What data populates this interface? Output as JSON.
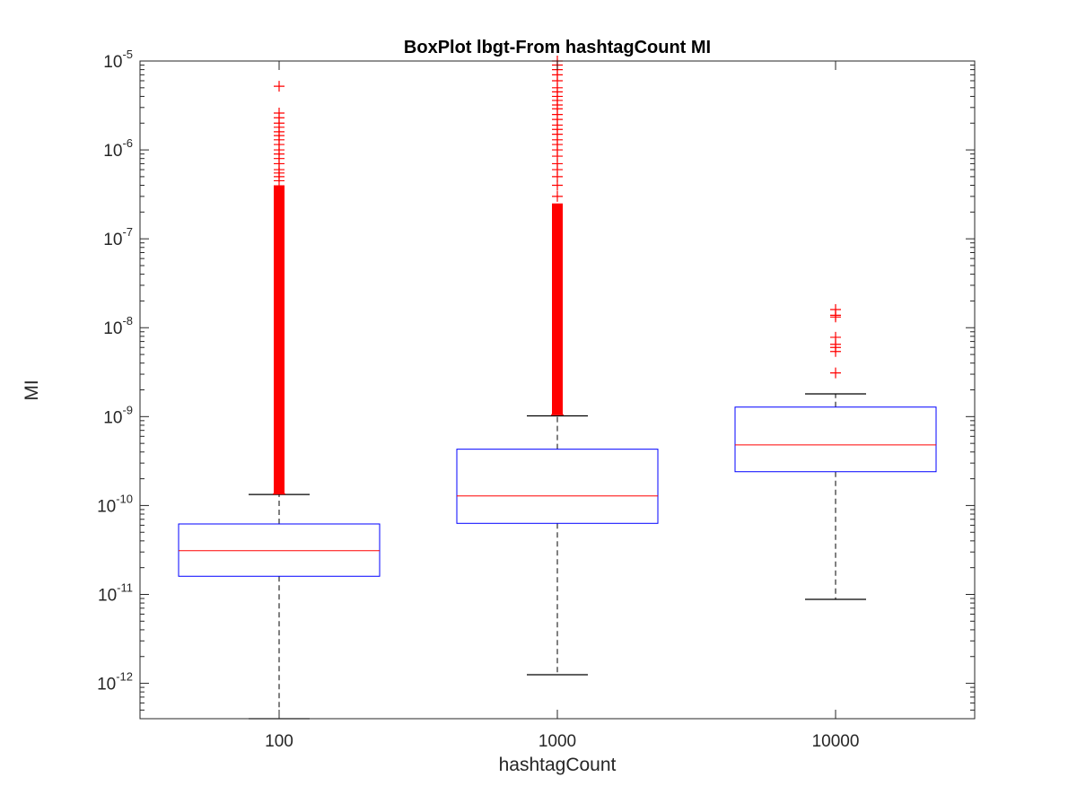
{
  "chart_data": {
    "type": "box",
    "title": "BoxPlot lbgt-From hashtagCount MI",
    "xlabel": "hashtagCount",
    "ylabel": "MI",
    "yscale": "log",
    "ylim": [
      4e-13,
      1e-05
    ],
    "categories": [
      "100",
      "1000",
      "10000"
    ],
    "y_ticks": [
      {
        "value": 1e-12,
        "base": "10",
        "exp": "-12"
      },
      {
        "value": 1e-11,
        "base": "10",
        "exp": "-11"
      },
      {
        "value": 1e-10,
        "base": "10",
        "exp": "-10"
      },
      {
        "value": 1e-09,
        "base": "10",
        "exp": "-9"
      },
      {
        "value": 1e-08,
        "base": "10",
        "exp": "-8"
      },
      {
        "value": 1e-07,
        "base": "10",
        "exp": "-7"
      },
      {
        "value": 1e-06,
        "base": "10",
        "exp": "-6"
      },
      {
        "value": 1e-05,
        "base": "10",
        "exp": "-5"
      }
    ],
    "boxes": [
      {
        "category": "100",
        "whisker_low": 4e-13,
        "q1": 1.6e-11,
        "median": 3.1e-11,
        "q3": 6.2e-11,
        "whisker_high": 1.33e-10,
        "outliers_dense_range": [
          1.35e-10,
          4e-07
        ],
        "outliers": [
          5.2e-06,
          2.6e-06,
          2.3e-06,
          2e-06,
          1.8e-06,
          1.6e-06,
          1.45e-06,
          1.3e-06,
          1.15e-06,
          1e-06,
          9e-07,
          8e-07,
          7e-07,
          6e-07,
          5.5e-07,
          5e-07,
          4.5e-07
        ]
      },
      {
        "category": "1000",
        "whisker_low": 1.25e-12,
        "q1": 6.3e-11,
        "median": 1.28e-10,
        "q3": 4.3e-10,
        "whisker_high": 1.02e-09,
        "outliers_dense_range": [
          1.05e-09,
          2.5e-07
        ],
        "outliers": [
          1e-05,
          9e-06,
          8e-06,
          7e-06,
          6e-06,
          5e-06,
          4.5e-06,
          4e-06,
          3.6e-06,
          3.2e-06,
          2.9e-06,
          2.5e-06,
          2.2e-06,
          1.9e-06,
          1.7e-06,
          1.5e-06,
          1.3e-06,
          1.15e-06,
          1e-06,
          8.5e-07,
          7e-07,
          6e-07,
          5e-07,
          4e-07,
          3e-07
        ]
      },
      {
        "category": "10000",
        "whisker_low": 8.8e-12,
        "q1": 2.4e-10,
        "median": 4.8e-10,
        "q3": 1.28e-09,
        "whisker_high": 1.8e-09,
        "outliers": [
          1.6e-08,
          1.38e-08,
          1.32e-08,
          7.8e-09,
          6.5e-09,
          6e-09,
          5.4e-09,
          3.1e-09
        ]
      }
    ],
    "colors": {
      "box": "#0000ff",
      "median": "#ff0000",
      "whisker": "#000000",
      "outlier": "#ff0000",
      "axis": "#262626"
    },
    "grid": false,
    "legend": "none"
  }
}
